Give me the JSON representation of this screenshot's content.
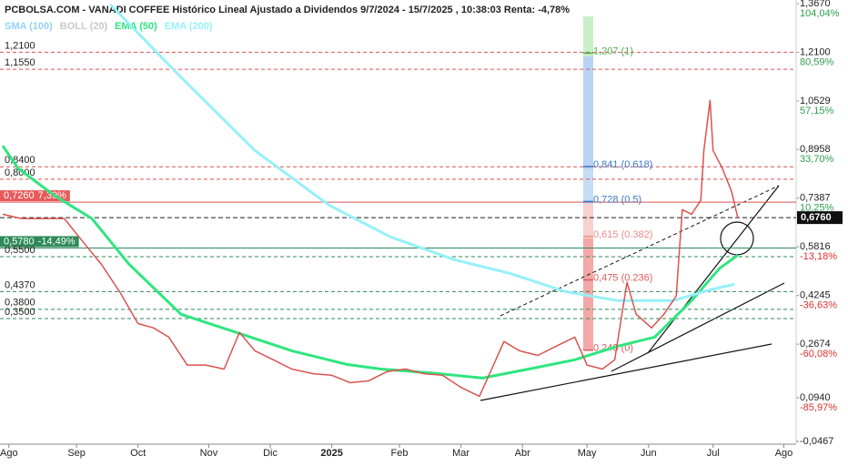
{
  "chart_data": {
    "type": "line",
    "title": "PCBOLSA.COM - VANADI COFFEE Histórico Lineal Ajustado a Dividendos 9/7/2024 - 15/7/2025 , 10:38:03 Renta: -4,78%",
    "legend_only": [
      {
        "name": "SMA (100)",
        "color": "#8fd3f5"
      },
      {
        "name": "BOLL (20)",
        "color": "#c8c8c8"
      }
    ],
    "series": [
      {
        "color": "#d9534f",
        "x": [
          0,
          6,
          12,
          20,
          26,
          32,
          38,
          44,
          49,
          54,
          60,
          66,
          72,
          77,
          82,
          88,
          94,
          101,
          107,
          113,
          119,
          125,
          131,
          137,
          143,
          149,
          155,
          159,
          163,
          168,
          174,
          180,
          186,
          190,
          195,
          199,
          203,
          206,
          211,
          215,
          219,
          221,
          224,
          227,
          228,
          230,
          231,
          234,
          237,
          239
        ],
        "values": [
          0.687,
          0.673,
          0.673,
          0.673,
          0.599,
          0.526,
          0.437,
          0.334,
          0.32,
          0.29,
          0.2,
          0.2,
          0.187,
          0.305,
          0.246,
          0.217,
          0.187,
          0.172,
          0.167,
          0.143,
          0.149,
          0.179,
          0.187,
          0.172,
          0.167,
          0.128,
          0.099,
          0.187,
          0.276,
          0.246,
          0.231,
          0.261,
          0.29,
          0.2,
          0.187,
          0.217,
          0.467,
          0.364,
          0.32,
          0.364,
          0.423,
          0.702,
          0.687,
          0.732,
          0.893,
          1.055,
          0.893,
          0.835,
          0.761,
          0.676
        ]
      },
      {
        "name": "EMA (50)",
        "color": "#2ee67f",
        "x": [
          0,
          5,
          17,
          29,
          41,
          58,
          76,
          94,
          112,
          123,
          141,
          156,
          171,
          186,
          200,
          212,
          224,
          233,
          239
        ],
        "values": [
          0.908,
          0.835,
          0.746,
          0.673,
          0.526,
          0.364,
          0.305,
          0.246,
          0.202,
          0.187,
          0.173,
          0.158,
          0.187,
          0.217,
          0.261,
          0.29,
          0.408,
          0.511,
          0.555
        ]
      },
      {
        "name": "EMA (200)",
        "color": "#96f0f8",
        "x": [
          35,
          58,
          82,
          106,
          126,
          147,
          165,
          183,
          200,
          218,
          230,
          238
        ],
        "values": [
          1.364,
          1.129,
          0.893,
          0.717,
          0.614,
          0.54,
          0.496,
          0.437,
          0.408,
          0.408,
          0.443,
          0.461
        ]
      }
    ],
    "xlim": [
      0,
      258
    ],
    "xticks": [
      {
        "value": 2,
        "label": "Ago"
      },
      {
        "value": 24,
        "label": "Sep"
      },
      {
        "value": 44,
        "label": "Oct"
      },
      {
        "value": 67,
        "label": "Nov"
      },
      {
        "value": 87,
        "label": "Dic"
      },
      {
        "value": 107,
        "label": "2025"
      },
      {
        "value": 129,
        "label": "Feb"
      },
      {
        "value": 149,
        "label": "Mar"
      },
      {
        "value": 169,
        "label": "Abr"
      },
      {
        "value": 190,
        "label": "May"
      },
      {
        "value": 210,
        "label": "Jun"
      },
      {
        "value": 231,
        "label": "Jul"
      },
      {
        "value": 254,
        "label": "Ago"
      }
    ],
    "ylim": [
      -0.0467,
      1.367
    ],
    "yticks": [
      {
        "value": 1.367,
        "label": "1,3670"
      },
      {
        "value": 1.21,
        "label": "1,2100"
      },
      {
        "value": 1.0529,
        "label": "1,0529"
      },
      {
        "value": 0.8958,
        "label": "0,8958"
      },
      {
        "value": 0.7387,
        "label": "0,7387"
      },
      {
        "value": 0.5816,
        "label": "0,5816"
      },
      {
        "value": 0.4245,
        "label": "0,4245"
      },
      {
        "value": 0.2674,
        "label": "0,2674"
      },
      {
        "value": 0.094,
        "label": "0,0940"
      },
      {
        "value": -0.0467,
        "label": "-0,0467"
      }
    ],
    "y2lim": [
      -106.97,
      104.04
    ],
    "y2ticks": [
      {
        "value": 104.04,
        "label": "104,04%"
      },
      {
        "value": 80.59,
        "label": "80,59%"
      },
      {
        "value": 57.15,
        "label": "57,15%"
      },
      {
        "value": 33.7,
        "label": "33,70%"
      },
      {
        "value": 10.25,
        "label": "10,25%"
      },
      {
        "value": -13.18,
        "label": "-13,18%"
      },
      {
        "value": -36.63,
        "label": "-36,63%"
      },
      {
        "value": -60.08,
        "label": "-60,08%"
      },
      {
        "value": -85.97,
        "label": "-85,97%"
      }
    ],
    "positive_color": "#2e9e4f",
    "negative_color": "#e03030",
    "levels": [
      {
        "value": 1.21,
        "label": "1,2100",
        "color": "#d9534f"
      },
      {
        "value": 1.155,
        "label": "1,1550",
        "color": "#d9534f"
      },
      {
        "value": 0.84,
        "label": "0,8400",
        "color": "#d9534f"
      },
      {
        "value": 0.8,
        "label": "0,8000",
        "color": "#d9534f"
      },
      {
        "value": 0.726,
        "label": "0,7260",
        "change": "7,39%",
        "color": "#d9534f",
        "box": "#e85a5a"
      },
      {
        "value": 0.578,
        "label": "0,5780",
        "change": "-14,49%",
        "color": "#2e8b57",
        "box": "#2e8b57"
      },
      {
        "value": 0.55,
        "label": "0,5500",
        "color": "#2e8b57"
      },
      {
        "value": 0.437,
        "label": "0,4370",
        "color": "#2e8b57"
      },
      {
        "value": 0.38,
        "label": "0,3800",
        "color": "#2e8b57"
      },
      {
        "value": 0.35,
        "label": "0,3500",
        "color": "#2e8b57"
      }
    ],
    "last_price": {
      "value": 0.676,
      "label": "0,6760"
    },
    "fibonacci": [
      {
        "value": 1.207,
        "label": "1,207 (1)",
        "color": "#4caf50"
      },
      {
        "value": 0.841,
        "label": "0,841 (0.618)",
        "color": "#3a78c9"
      },
      {
        "value": 0.728,
        "label": "0,728 (0.5)",
        "color": "#3a78c9"
      },
      {
        "value": 0.615,
        "label": "0,615 (0.382)",
        "color": "#f08a8a"
      },
      {
        "value": 0.475,
        "label": "0,475 (0.236)",
        "color": "#e05a5a"
      },
      {
        "value": 0.248,
        "label": "0,248 (0)",
        "color": "#e05a5a"
      }
    ]
  }
}
